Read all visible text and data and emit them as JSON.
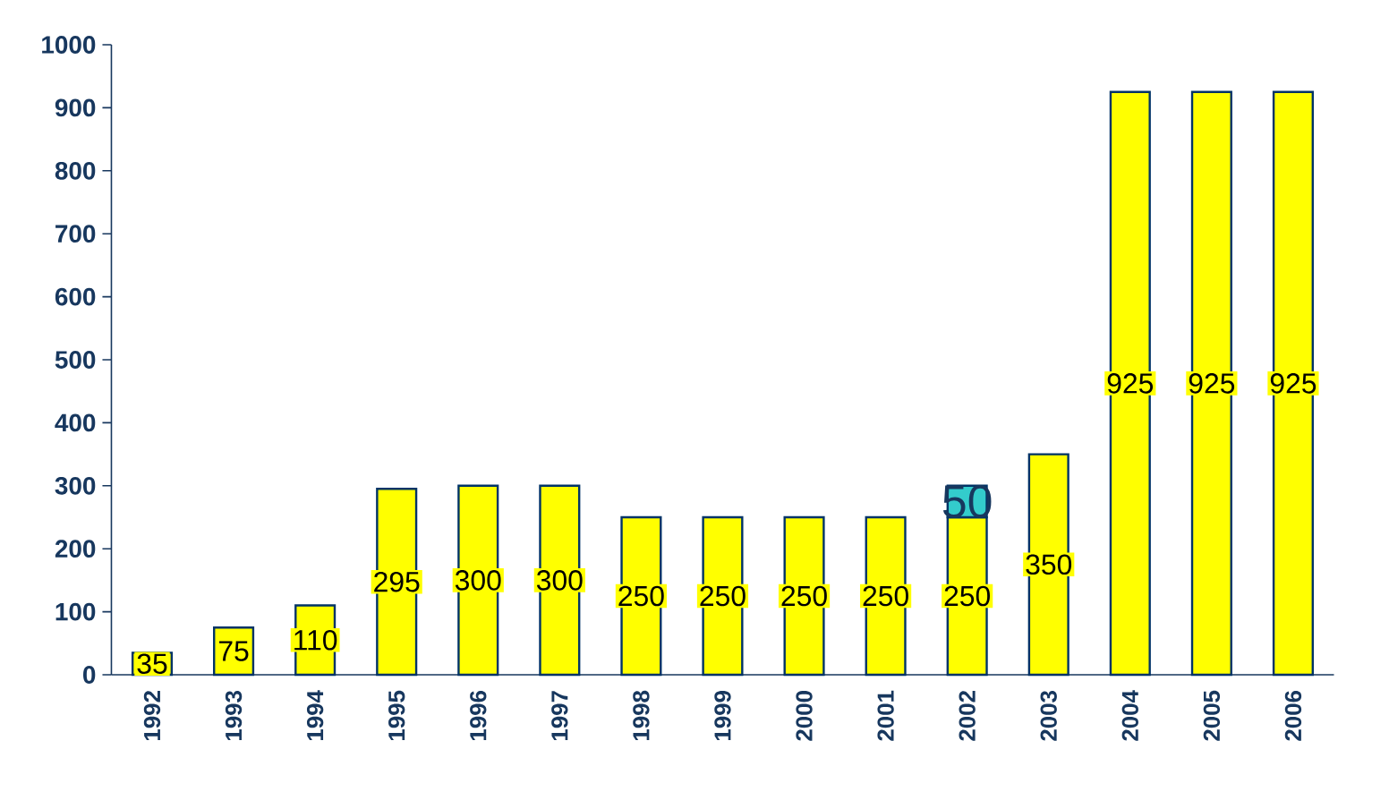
{
  "chart_data": {
    "type": "bar",
    "stacked": true,
    "categories": [
      "1992",
      "1993",
      "1994",
      "1995",
      "1996",
      "1997",
      "1998",
      "1999",
      "2000",
      "2001",
      "2002",
      "2003",
      "2004",
      "2005",
      "2006"
    ],
    "series": [
      {
        "color": "#ffff00",
        "values": [
          35,
          75,
          110,
          295,
          300,
          300,
          250,
          250,
          250,
          250,
          250,
          350,
          925,
          925,
          925
        ]
      },
      {
        "color": "#33cccc",
        "values": [
          null,
          null,
          null,
          null,
          null,
          null,
          null,
          null,
          null,
          null,
          50,
          null,
          null,
          null,
          null
        ]
      }
    ],
    "ylim": [
      0,
      1000
    ],
    "yticks": [
      0,
      100,
      200,
      300,
      400,
      500,
      600,
      700,
      800,
      900,
      1000
    ],
    "data_labels": true,
    "grid": false
  }
}
